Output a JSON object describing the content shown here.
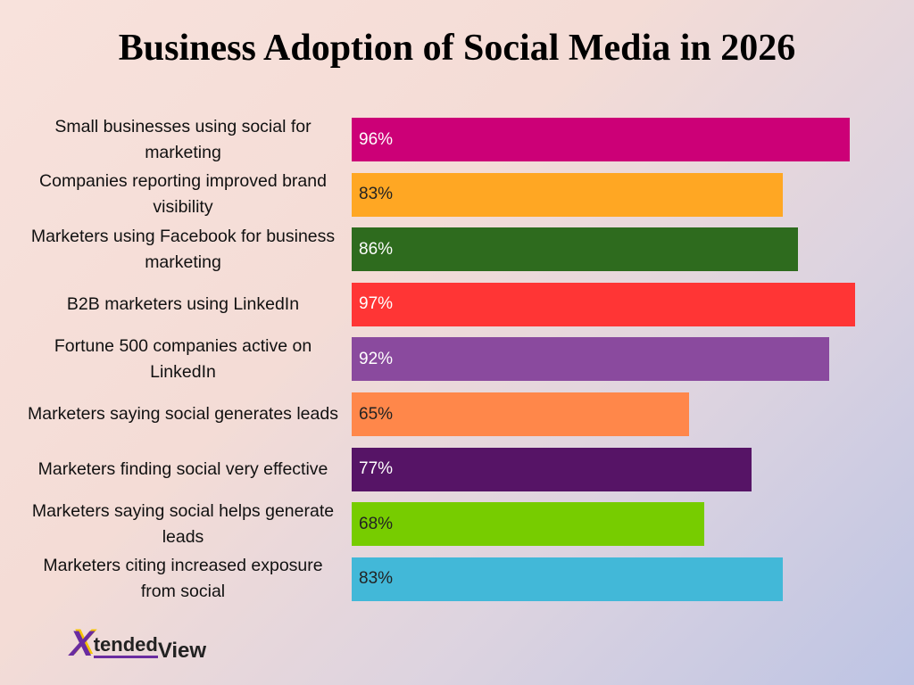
{
  "chart_data": {
    "type": "bar",
    "orientation": "horizontal",
    "title": "Business Adoption of Social Media in 2026",
    "categories": [
      "Small businesses using social for marketing",
      "Companies reporting improved brand visibility",
      "Marketers using Facebook for business marketing",
      "B2B marketers using LinkedIn",
      "Fortune 500 companies active on LinkedIn",
      "Marketers saying social generates leads",
      "Marketers finding social very effective",
      "Marketers saying social helps generate leads",
      "Marketers citing increased exposure from social"
    ],
    "values": [
      96,
      83,
      86,
      97,
      92,
      65,
      77,
      68,
      83
    ],
    "value_labels": [
      "96%",
      "83%",
      "86%",
      "97%",
      "92%",
      "65%",
      "77%",
      "68%",
      "83%"
    ],
    "colors": [
      "#cc0077",
      "#ffa723",
      "#2e6b1e",
      "#ff3535",
      "#8a4a9e",
      "#ff874a",
      "#561466",
      "#77cc00",
      "#42b8d8"
    ]
  },
  "logo": {
    "mark": "X",
    "text": "tended",
    "text2": "View"
  }
}
